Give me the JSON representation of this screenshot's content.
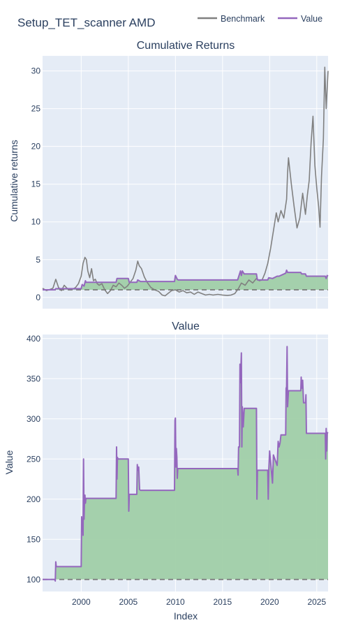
{
  "figure_title": "Setup_TET_scanner AMD",
  "x_axis_title": "Index",
  "colors": {
    "benchmark": "#808080",
    "value": "#9467bd",
    "fill": "#a0cfa8",
    "plot_bg": "#e5ecf6",
    "grid": "#ffffff",
    "baseline": "#7a7a7a"
  },
  "chart_data": [
    {
      "type": "line",
      "title": "Cumulative Returns",
      "xlabel": "",
      "ylabel": "Cumulative returns",
      "xlim": [
        1995.9,
        2026.2
      ],
      "ylim": [
        -1.5,
        32
      ],
      "x_ticks": [
        2000,
        2005,
        2010,
        2015,
        2020,
        2025
      ],
      "y_ticks": [
        0,
        5,
        10,
        15,
        20,
        25,
        30
      ],
      "baseline": 1,
      "legend_position": "top-right",
      "grid": true,
      "series": [
        {
          "name": "Benchmark",
          "x": [
            1995.9,
            1996.3,
            1996.6,
            1997.0,
            1997.3,
            1997.6,
            1997.9,
            1998.2,
            1998.5,
            1998.8,
            1999.1,
            1999.4,
            1999.7,
            2000.0,
            2000.2,
            2000.4,
            2000.55,
            2000.7,
            2000.9,
            2001.1,
            2001.3,
            2001.5,
            2001.7,
            2001.9,
            2002.2,
            2002.5,
            2002.8,
            2003.1,
            2003.4,
            2003.7,
            2004.0,
            2004.3,
            2004.6,
            2004.9,
            2005.2,
            2005.5,
            2005.8,
            2006.0,
            2006.15,
            2006.4,
            2006.7,
            2007.0,
            2007.4,
            2007.8,
            2008.2,
            2008.6,
            2008.9,
            2009.2,
            2009.6,
            2010.0,
            2010.4,
            2010.8,
            2011.2,
            2011.6,
            2012.0,
            2012.4,
            2012.8,
            2013.2,
            2013.6,
            2014.0,
            2014.5,
            2015.0,
            2015.5,
            2015.9,
            2016.3,
            2016.7,
            2017.0,
            2017.4,
            2017.8,
            2018.2,
            2018.6,
            2018.9,
            2019.2,
            2019.5,
            2019.8,
            2020.1,
            2020.4,
            2020.7,
            2020.9,
            2021.2,
            2021.5,
            2021.8,
            2021.9,
            2022.0,
            2022.3,
            2022.6,
            2022.9,
            2023.2,
            2023.5,
            2023.8,
            2024.0,
            2024.2,
            2024.4,
            2024.6,
            2024.8,
            2025.0,
            2025.2,
            2025.35,
            2025.5,
            2025.7,
            2025.85,
            2026.0,
            2026.2
          ],
          "values": [
            1.2,
            0.9,
            1.0,
            1.2,
            2.4,
            1.3,
            0.9,
            1.6,
            1.2,
            1.0,
            1.1,
            1.3,
            1.8,
            2.8,
            4.5,
            5.3,
            5.0,
            3.5,
            2.6,
            3.8,
            2.2,
            2.4,
            1.8,
            1.6,
            1.8,
            1.0,
            0.5,
            0.9,
            1.6,
            1.4,
            1.9,
            1.6,
            1.2,
            1.5,
            2.0,
            2.5,
            3.6,
            4.8,
            4.2,
            3.8,
            2.7,
            2.0,
            1.3,
            1.0,
            0.8,
            0.3,
            0.2,
            0.5,
            0.9,
            1.0,
            0.7,
            0.9,
            0.6,
            0.7,
            0.4,
            0.7,
            0.5,
            0.3,
            0.4,
            0.3,
            0.4,
            0.3,
            0.25,
            0.3,
            0.5,
            1.2,
            1.9,
            1.6,
            2.3,
            1.9,
            2.5,
            2.2,
            2.3,
            3.2,
            4.5,
            6.5,
            8.8,
            11.2,
            10.0,
            11.5,
            10.5,
            13.0,
            16.5,
            18.5,
            15.0,
            12.0,
            9.2,
            10.5,
            13.8,
            11.0,
            13.5,
            15.5,
            20.5,
            24.0,
            17.5,
            14.5,
            12.0,
            9.3,
            16.0,
            21.0,
            30.5,
            25.0,
            30.0
          ]
        },
        {
          "name": "Value",
          "x": [
            1995.9,
            1997.2,
            1997.3,
            2000.0,
            2000.1,
            2000.3,
            2000.45,
            2000.5,
            2003.7,
            2003.8,
            2005.0,
            2005.1,
            2005.9,
            2006.0,
            2006.3,
            2009.9,
            2010.0,
            2010.2,
            2010.3,
            2016.6,
            2016.7,
            2016.9,
            2017.0,
            2017.1,
            2017.3,
            2018.6,
            2018.7,
            2019.8,
            2019.9,
            2020.3,
            2020.8,
            2021.0,
            2021.7,
            2021.8,
            2021.9,
            2022.0,
            2023.3,
            2023.4,
            2023.8,
            2023.9,
            2024.2,
            2025.9,
            2026.0,
            2026.1,
            2026.2
          ],
          "values": [
            1.0,
            1.0,
            1.15,
            1.15,
            1.7,
            1.5,
            2.2,
            2.0,
            2.0,
            2.5,
            2.5,
            2.0,
            2.0,
            2.3,
            2.1,
            2.1,
            2.9,
            2.4,
            2.3,
            2.3,
            2.7,
            3.5,
            2.9,
            3.5,
            3.1,
            3.1,
            2.3,
            2.3,
            2.6,
            2.5,
            2.8,
            2.8,
            3.2,
            3.6,
            3.3,
            3.3,
            3.3,
            3.1,
            3.1,
            2.8,
            2.8,
            2.8,
            2.5,
            2.9,
            2.8
          ]
        }
      ]
    },
    {
      "type": "line",
      "title": "Value",
      "xlabel": "Index",
      "ylabel": "Value",
      "xlim": [
        1995.9,
        2026.2
      ],
      "ylim": [
        85,
        405
      ],
      "x_ticks": [
        2000,
        2005,
        2010,
        2015,
        2020,
        2025
      ],
      "y_ticks": [
        100,
        150,
        200,
        250,
        300,
        350,
        400
      ],
      "baseline": 100,
      "grid": true,
      "series": [
        {
          "name": "Value",
          "x": [
            1995.9,
            1997.2,
            1997.25,
            1997.3,
            1997.35,
            2000.0,
            2000.05,
            2000.1,
            2000.15,
            2000.2,
            2000.25,
            2000.3,
            2000.35,
            2000.4,
            2000.45,
            2000.5,
            2003.7,
            2003.75,
            2003.8,
            2003.85,
            2003.9,
            2005.0,
            2005.05,
            2005.1,
            2005.15,
            2005.9,
            2005.95,
            2006.0,
            2006.1,
            2006.2,
            2006.3,
            2009.9,
            2009.95,
            2010.0,
            2010.05,
            2010.1,
            2010.15,
            2010.2,
            2010.25,
            2010.3,
            2016.6,
            2016.65,
            2016.7,
            2016.8,
            2016.85,
            2016.9,
            2017.0,
            2017.05,
            2017.1,
            2017.2,
            2017.3,
            2017.4,
            2018.6,
            2018.65,
            2018.7,
            2018.75,
            2019.8,
            2019.85,
            2019.9,
            2020.0,
            2020.3,
            2020.4,
            2020.8,
            2020.9,
            2021.0,
            2021.1,
            2021.2,
            2021.7,
            2021.75,
            2021.8,
            2021.85,
            2021.9,
            2022.0,
            2023.3,
            2023.35,
            2023.4,
            2023.5,
            2023.6,
            2023.8,
            2023.85,
            2023.9,
            2024.2,
            2025.9,
            2025.95,
            2026.0,
            2026.05,
            2026.1,
            2026.2
          ],
          "values": [
            100,
            100,
            98,
            122,
            116,
            116,
            178,
            160,
            175,
            155,
            250,
            175,
            200,
            205,
            195,
            201,
            201,
            265,
            225,
            252,
            250,
            250,
            185,
            206,
            206,
            206,
            243,
            236,
            240,
            212,
            211,
            211,
            298,
            301,
            240,
            263,
            252,
            226,
            238,
            238,
            238,
            230,
            265,
            265,
            368,
            345,
            382,
            265,
            315,
            290,
            313,
            313,
            313,
            200,
            235,
            236,
            236,
            200,
            235,
            260,
            220,
            255,
            242,
            272,
            265,
            270,
            280,
            280,
            338,
            340,
            390,
            315,
            335,
            335,
            352,
            338,
            348,
            320,
            320,
            330,
            282,
            282,
            282,
            250,
            288,
            260,
            283,
            282
          ]
        }
      ]
    }
  ]
}
